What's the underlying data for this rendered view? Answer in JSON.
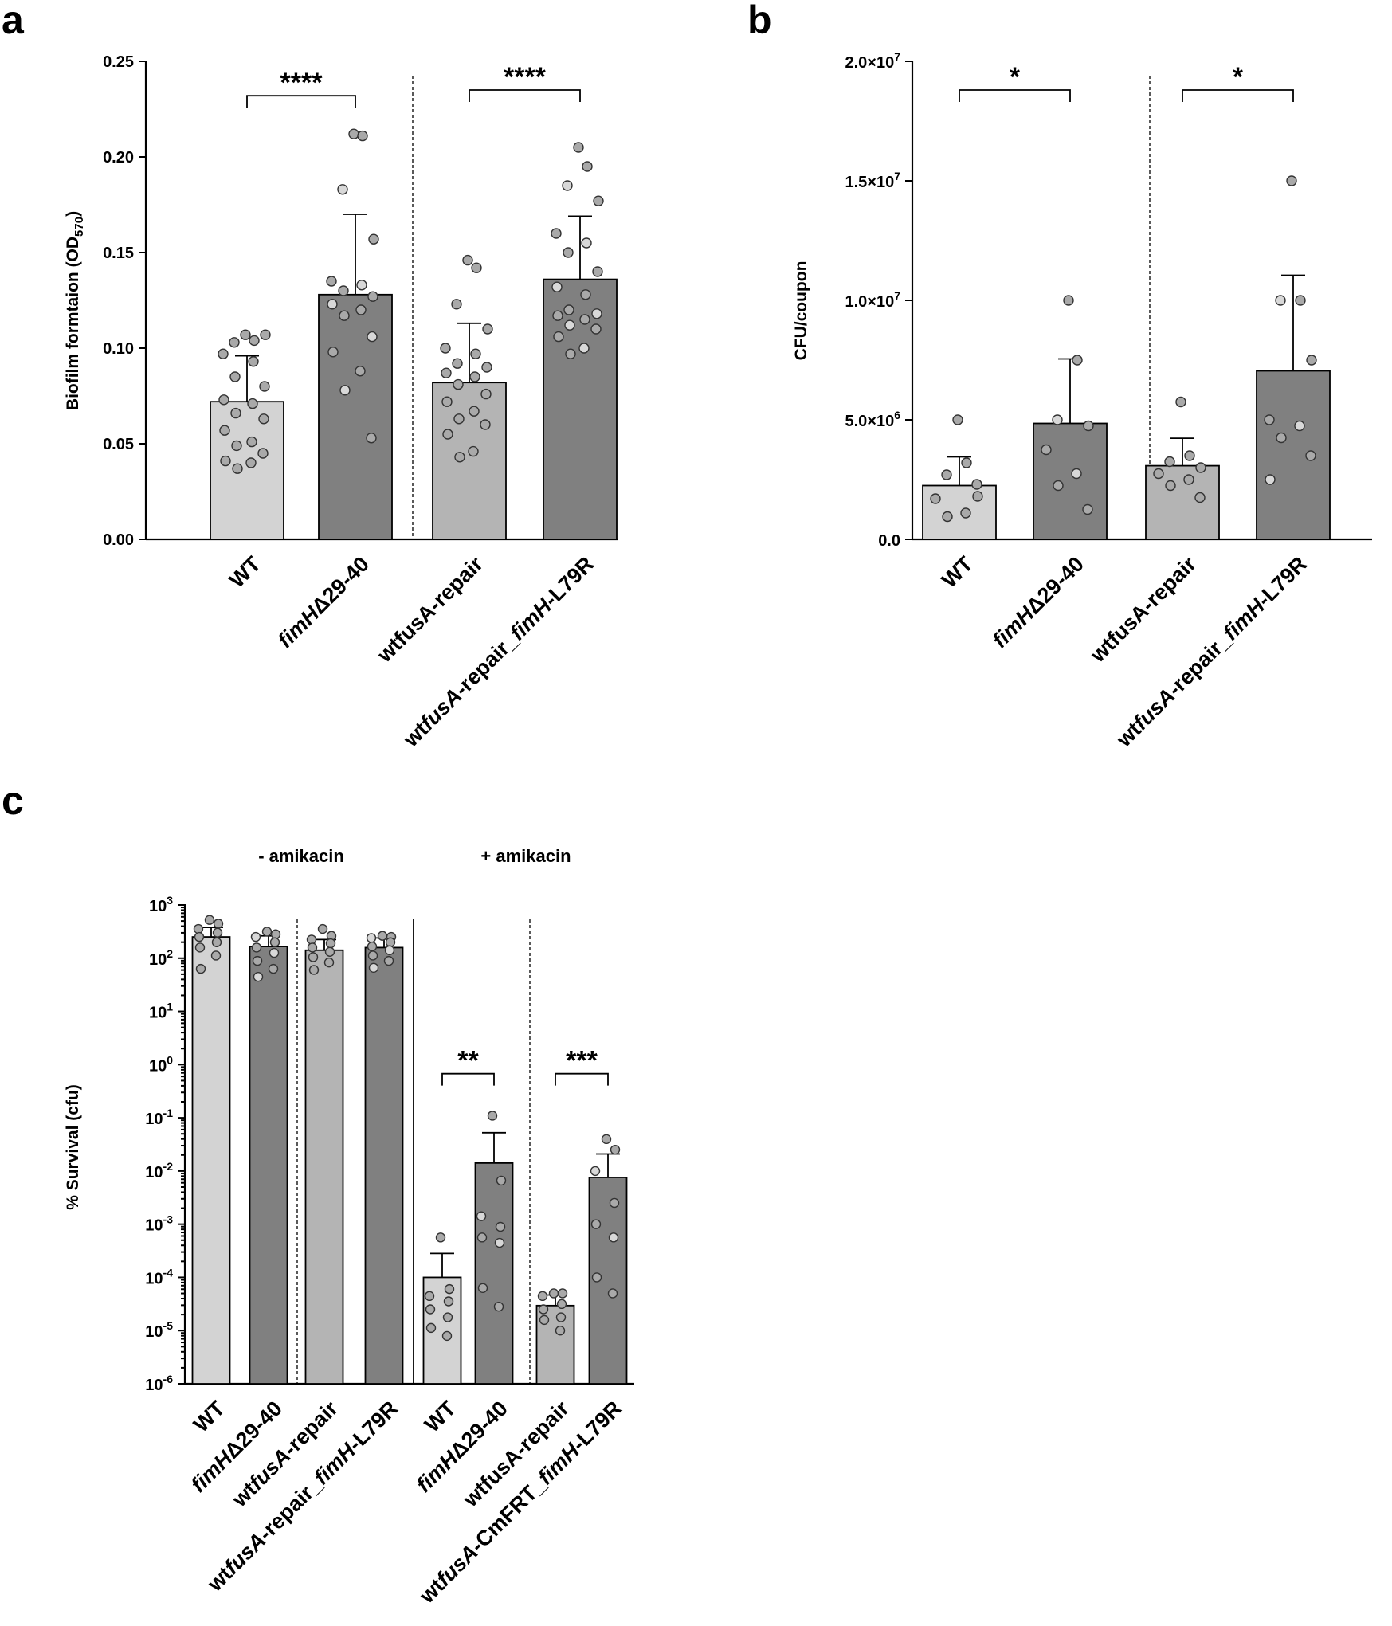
{
  "panels": {
    "a": "a",
    "b": "b",
    "c": "c"
  },
  "conditions": {
    "minus": "- amikacin",
    "plus": "+ amikacin"
  },
  "chart_data": [
    {
      "id": "a",
      "type": "bar",
      "scale": "linear",
      "ylabel": "Biofilm formtaion (OD",
      "ylabel_sub": "570",
      "ylabel_end": ")",
      "ylim": [
        0,
        0.25
      ],
      "yticks": [
        0,
        0.05,
        0.1,
        0.15,
        0.2,
        0.25
      ],
      "ytick_labels": [
        "0.00",
        "0.05",
        "0.10",
        "0.15",
        "0.20",
        "0.25"
      ],
      "categories": [
        [
          {
            "t": "WT",
            "i": false
          }
        ],
        [
          {
            "t": "fimH",
            "i": true
          },
          {
            "t": "Δ29-40",
            "i": false
          }
        ],
        [
          {
            "t": "wtfusA-repair",
            "i": false
          }
        ],
        [
          {
            "t": "wt",
            "i": false
          },
          {
            "t": "fusA",
            "i": true
          },
          {
            "t": "-repair_",
            "i": false
          },
          {
            "t": "fimH",
            "i": true
          },
          {
            "t": "-L79R",
            "i": false
          }
        ]
      ],
      "colors": [
        "#d3d3d3",
        "#808080",
        "#b4b4b4",
        "#808080"
      ],
      "values": [
        0.072,
        0.128,
        0.082,
        0.136
      ],
      "errors": [
        0.024,
        0.042,
        0.031,
        0.033
      ],
      "points": [
        [
          0.107,
          0.104,
          0.103,
          0.107,
          0.097,
          0.093,
          0.085,
          0.08,
          0.073,
          0.071,
          0.066,
          0.063,
          0.057,
          0.051,
          0.049,
          0.045,
          0.041,
          0.04,
          0.037
        ],
        [
          0.212,
          0.211,
          0.183,
          0.157,
          0.135,
          0.133,
          0.13,
          0.127,
          0.123,
          0.12,
          0.117,
          0.106,
          0.098,
          0.088,
          0.078,
          0.053
        ],
        [
          0.146,
          0.142,
          0.123,
          0.11,
          0.1,
          0.097,
          0.092,
          0.09,
          0.087,
          0.085,
          0.081,
          0.076,
          0.072,
          0.067,
          0.063,
          0.06,
          0.055,
          0.046,
          0.043
        ],
        [
          0.205,
          0.195,
          0.185,
          0.177,
          0.16,
          0.155,
          0.15,
          0.14,
          0.132,
          0.128,
          0.12,
          0.118,
          0.117,
          0.115,
          0.112,
          0.11,
          0.106,
          0.1,
          0.097
        ]
      ],
      "separators": [
        {
          "after": 1,
          "style": "dashed"
        }
      ],
      "significance": [
        {
          "from": 0,
          "to": 1,
          "y": 0.232,
          "label": "****"
        },
        {
          "from": 2,
          "to": 3,
          "y": 0.235,
          "label": "****"
        }
      ]
    },
    {
      "id": "b",
      "type": "bar",
      "scale": "linear",
      "ylabel": "CFU/coupon",
      "ylim": [
        0,
        20000000
      ],
      "yticks": [
        0,
        5000000,
        10000000,
        15000000,
        20000000
      ],
      "ytick_labels": [
        {
          "m": "0.0",
          "e": ""
        },
        {
          "m": "5.0×10",
          "e": "6"
        },
        {
          "m": "1.0×10",
          "e": "7"
        },
        {
          "m": "1.5×10",
          "e": "7"
        },
        {
          "m": "2.0×10",
          "e": "7"
        }
      ],
      "categories": [
        [
          {
            "t": "WT",
            "i": false
          }
        ],
        [
          {
            "t": "fimH",
            "i": true
          },
          {
            "t": "Δ29-40",
            "i": false
          }
        ],
        [
          {
            "t": "wtfusA-repair",
            "i": false
          }
        ],
        [
          {
            "t": "wt",
            "i": false
          },
          {
            "t": "fusA",
            "i": true
          },
          {
            "t": "-repair_",
            "i": false
          },
          {
            "t": "fimH",
            "i": true
          },
          {
            "t": "-L79R",
            "i": false
          }
        ]
      ],
      "colors": [
        "#d3d3d3",
        "#808080",
        "#b4b4b4",
        "#808080"
      ],
      "values": [
        2250000,
        4850000,
        3080000,
        7050000
      ],
      "errors": [
        1200000,
        2700000,
        1150000,
        4000000
      ],
      "points": [
        [
          5000000,
          3200000,
          2700000,
          1800000,
          1700000,
          1100000,
          950000,
          2300000
        ],
        [
          10000000,
          7500000,
          5000000,
          4750000,
          3750000,
          2750000,
          2250000,
          1250000
        ],
        [
          5750000,
          3500000,
          3250000,
          3000000,
          2750000,
          2500000,
          2250000,
          1750000
        ],
        [
          15000000,
          10000000,
          10000000,
          7500000,
          5000000,
          4750000,
          4250000,
          3500000,
          2500000
        ]
      ],
      "separators": [
        {
          "after": 1,
          "style": "dashed"
        }
      ],
      "significance": [
        {
          "from": 0,
          "to": 1,
          "y": 18800000,
          "label": "*"
        },
        {
          "from": 2,
          "to": 3,
          "y": 18800000,
          "label": "*"
        }
      ]
    },
    {
      "id": "c",
      "type": "bar",
      "scale": "log",
      "ylabel": "% Survival (cfu)",
      "ylim_log10": [
        -6,
        3
      ],
      "yticks_log10": [
        -6,
        -5,
        -4,
        -3,
        -2,
        -1,
        0,
        1,
        2,
        3
      ],
      "ytick_labels": [
        {
          "m": "10",
          "e": "-6"
        },
        {
          "m": "10",
          "e": "-5"
        },
        {
          "m": "10",
          "e": "-4"
        },
        {
          "m": "10",
          "e": "-3"
        },
        {
          "m": "10",
          "e": "-2"
        },
        {
          "m": "10",
          "e": "-1"
        },
        {
          "m": "10",
          "e": "0"
        },
        {
          "m": "10",
          "e": "1"
        },
        {
          "m": "10",
          "e": "2"
        },
        {
          "m": "10",
          "e": "3"
        }
      ],
      "categories": [
        [
          {
            "t": "WT",
            "i": false
          }
        ],
        [
          {
            "t": "fimH",
            "i": true
          },
          {
            "t": "Δ29-40",
            "i": false
          }
        ],
        [
          {
            "t": "wt",
            "i": false
          },
          {
            "t": "fusA",
            "i": true
          },
          {
            "t": "-repair",
            "i": false
          }
        ],
        [
          {
            "t": "wt",
            "i": false
          },
          {
            "t": "fusA",
            "i": true
          },
          {
            "t": "-repair_",
            "i": false
          },
          {
            "t": "fimH",
            "i": true
          },
          {
            "t": "-L79R",
            "i": false
          }
        ],
        [
          {
            "t": "WT",
            "i": false
          }
        ],
        [
          {
            "t": "fimH",
            "i": true
          },
          {
            "t": "Δ29-40",
            "i": false
          }
        ],
        [
          {
            "t": "wtfusA-repair",
            "i": false
          }
        ],
        [
          {
            "t": "wt",
            "i": false
          },
          {
            "t": "fusA",
            "i": true
          },
          {
            "t": "-CmFRT_",
            "i": false
          },
          {
            "t": "fimH",
            "i": true
          },
          {
            "t": "-L79R",
            "i": false
          }
        ]
      ],
      "colors": [
        "#d3d3d3",
        "#808080",
        "#b4b4b4",
        "#808080",
        "#d3d3d3",
        "#808080",
        "#b4b4b4",
        "#808080"
      ],
      "values_log10": [
        2.4,
        2.22,
        2.15,
        2.2,
        -4.0,
        -1.85,
        -4.53,
        -2.12
      ],
      "errors_upper_log10": [
        2.58,
        2.42,
        2.35,
        2.38,
        -3.55,
        -1.28,
        -4.33,
        -1.68
      ],
      "points_log10": [
        [
          2.72,
          2.65,
          2.55,
          2.48,
          2.4,
          2.3,
          2.2,
          2.05,
          1.8
        ],
        [
          2.5,
          2.45,
          2.4,
          2.3,
          2.2,
          2.1,
          1.95,
          1.8,
          1.65
        ],
        [
          2.55,
          2.42,
          2.35,
          2.28,
          2.2,
          2.12,
          2.02,
          1.92,
          1.78
        ],
        [
          2.42,
          2.4,
          2.38,
          2.3,
          2.22,
          2.15,
          2.05,
          1.95,
          1.82
        ],
        [
          -3.25,
          -4.22,
          -4.35,
          -4.45,
          -4.6,
          -4.75,
          -4.95,
          -5.1
        ],
        [
          -0.96,
          -2.18,
          -2.85,
          -3.05,
          -3.25,
          -3.35,
          -4.2,
          -4.55
        ],
        [
          -4.3,
          -4.3,
          -4.35,
          -4.5,
          -4.6,
          -4.75,
          -4.8,
          -5.0
        ],
        [
          -1.4,
          -1.6,
          -2.0,
          -2.6,
          -3.0,
          -3.25,
          -4.0,
          -4.3
        ]
      ],
      "separators": [
        {
          "after": 1,
          "style": "dashed"
        },
        {
          "after": 3,
          "style": "solid"
        },
        {
          "after": 5,
          "style": "dashed"
        }
      ],
      "significance": [
        {
          "from": 4,
          "to": 5,
          "y_log10": -0.17,
          "label": "**"
        },
        {
          "from": 6,
          "to": 7,
          "y_log10": -0.17,
          "label": "***"
        }
      ]
    }
  ]
}
